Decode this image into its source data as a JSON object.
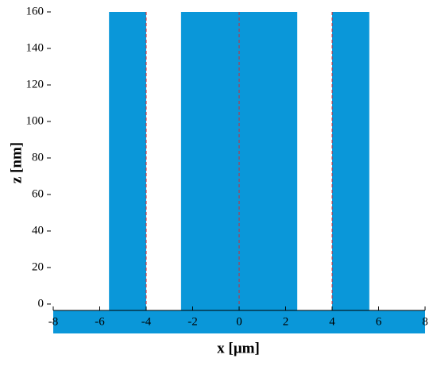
{
  "chart_data": {
    "type": "block-profile",
    "x_label": "x [µm]",
    "y_label": "z [nm]",
    "xlim": [
      -8,
      8
    ],
    "xticks": [
      -8,
      -6,
      -4,
      -2,
      0,
      2,
      4,
      6,
      8
    ],
    "ylim": [
      -3.5,
      160
    ],
    "yticks": [
      0,
      20,
      40,
      60,
      80,
      100,
      120,
      140,
      160
    ],
    "color": "#0a97d9",
    "blocks": [
      {
        "x0": -5.6,
        "x1": -4,
        "height": 160
      },
      {
        "x0": -2.5,
        "x1": 2.5,
        "height": 160
      },
      {
        "x0": 4,
        "x1": 5.6,
        "height": 160
      }
    ],
    "guide_color": "#d9262a",
    "guides": [
      -4,
      0,
      4
    ]
  }
}
